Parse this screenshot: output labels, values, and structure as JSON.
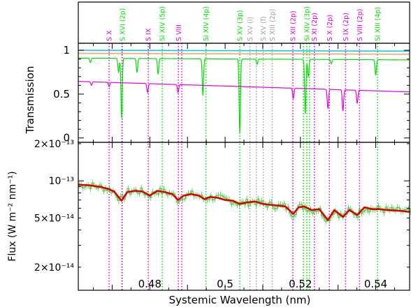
{
  "chart_data": [
    {
      "type": "line",
      "panel": "transmission",
      "ylabel": "Transmission",
      "xlim": [
        0.461,
        0.549
      ],
      "ylim": [
        -0.05,
        1.08
      ],
      "yticks": [
        0,
        0.5,
        1
      ],
      "ytick_labels": [
        "0",
        "0.5",
        "1"
      ],
      "series": [
        {
          "color": "#00c8f0",
          "style": "flat",
          "values": [
            [
              0.461,
              1.0
            ],
            [
              0.549,
              0.99
            ]
          ]
        },
        {
          "color": "#f0a060",
          "style": "flat",
          "values": [
            [
              0.461,
              0.965
            ],
            [
              0.549,
              0.955
            ]
          ]
        },
        {
          "color": "#00e000",
          "style": "absorption",
          "base": [
            [
              0.461,
              0.91
            ],
            [
              0.549,
              0.89
            ]
          ],
          "lines": [
            [
              0.4642,
              0.05
            ],
            [
              0.4717,
              0.16
            ],
            [
              0.4725,
              0.68
            ],
            [
              0.4766,
              0.16
            ],
            [
              0.4822,
              0.18
            ],
            [
              0.4941,
              0.42
            ],
            [
              0.5039,
              0.84
            ],
            [
              0.5085,
              0.06
            ],
            [
              0.5213,
              0.62
            ],
            [
              0.5221,
              0.2
            ],
            [
              0.5282,
              0.05
            ],
            [
              0.54,
              0.18
            ]
          ]
        },
        {
          "color": "#e000e0",
          "style": "absorption",
          "base": [
            [
              0.461,
              0.645
            ],
            [
              0.549,
              0.525
            ]
          ],
          "lines": [
            [
              0.4645,
              0.04
            ],
            [
              0.4692,
              0.05
            ],
            [
              0.4794,
              0.1
            ],
            [
              0.4875,
              0.09
            ],
            [
              0.5181,
              0.12
            ],
            [
              0.5273,
              0.22
            ],
            [
              0.5313,
              0.24
            ],
            [
              0.5351,
              0.15
            ]
          ]
        }
      ]
    },
    {
      "type": "line",
      "panel": "flux",
      "xlabel": "Systemic Wavelength (nm)",
      "ylabel": "Flux (W m⁻² nm⁻¹)",
      "yscale": "log",
      "xlim": [
        0.461,
        0.549
      ],
      "ylim": [
        1.3e-14,
        2.05e-13
      ],
      "xticks": [
        0.48,
        0.5,
        0.52,
        0.54
      ],
      "xtick_labels": [
        "0.48",
        "0.5",
        "0.52",
        "0.54"
      ],
      "yticks": [
        2e-14,
        5e-14,
        1e-13,
        2e-13
      ],
      "ytick_labels": [
        "2×10⁻¹⁴",
        "5×10⁻¹⁴",
        "10⁻¹³",
        "2×10⁻¹³"
      ],
      "series": [
        {
          "color": "#e00000",
          "style": "model",
          "x": [
            0.461,
            0.464,
            0.467,
            0.469,
            0.4705,
            0.4725,
            0.474,
            0.476,
            0.478,
            0.48,
            0.482,
            0.484,
            0.486,
            0.4875,
            0.489,
            0.491,
            0.493,
            0.4945,
            0.496,
            0.498,
            0.5,
            0.502,
            0.5039,
            0.506,
            0.508,
            0.51,
            0.512,
            0.514,
            0.516,
            0.5181,
            0.5195,
            0.521,
            0.523,
            0.525,
            0.5273,
            0.529,
            0.5313,
            0.533,
            0.5351,
            0.537,
            0.539,
            0.541,
            0.543,
            0.545,
            0.547,
            0.549
          ],
          "y": [
            9.3e-14,
            9.2e-14,
            8.9e-14,
            8.6e-14,
            8.2e-14,
            6.9e-14,
            8.1e-14,
            8.3e-14,
            8.2e-14,
            7.6e-14,
            8.3e-14,
            8.1e-14,
            7.8e-14,
            7e-14,
            7.6e-14,
            7.8e-14,
            7.6e-14,
            7.1e-14,
            7.4e-14,
            7.3e-14,
            7e-14,
            6.9e-14,
            6.5e-14,
            6.7e-14,
            6.8e-14,
            6.5e-14,
            6.4e-14,
            6.3e-14,
            6.2e-14,
            5.4e-14,
            6.1e-14,
            6.2e-14,
            5.8e-14,
            5.9e-14,
            4.8e-14,
            5.8e-14,
            5.1e-14,
            5.8e-14,
            5.3e-14,
            6.1e-14,
            5.9e-14,
            5.9e-14,
            5.8e-14,
            5.75e-14,
            5.7e-14,
            5.6e-14
          ]
        },
        {
          "color": "#44cc44",
          "style": "data-steps",
          "note": "noisy binned observed spectrum with error bars around the model"
        }
      ]
    }
  ],
  "line_ids": [
    {
      "label": "S X",
      "wl": 0.4692,
      "color": "#e000e0"
    },
    {
      "label": "S XVI (2p)",
      "wl": 0.4727,
      "color": "#00e000"
    },
    {
      "label": "S IX",
      "wl": 0.4796,
      "color": "#e000e0"
    },
    {
      "label": "Si XIV (5p)",
      "wl": 0.4833,
      "color": "#00e000"
    },
    {
      "label": "S VIII",
      "wl": 0.4876,
      "color": "#e000e0"
    },
    {
      "label": "Si XIV (4p)",
      "wl": 0.4949,
      "color": "#00e000"
    },
    {
      "label": "S XV (3p)",
      "wl": 0.5039,
      "color": "#00e000"
    },
    {
      "label": "S XV (i)",
      "wl": 0.5066,
      "color": "#a0a0a0"
    },
    {
      "label": "S XV (f)",
      "wl": 0.5101,
      "color": "#a0a0a0"
    },
    {
      "label": "S XIII (2p)",
      "wl": 0.5125,
      "color": "#a0a0a0"
    },
    {
      "label": "S XII (2p)",
      "wl": 0.518,
      "color": "#e000e0"
    },
    {
      "label": "Si XIV (3p)",
      "wl": 0.5217,
      "color": "#00e000"
    },
    {
      "label": "S XI (2p)",
      "wl": 0.5237,
      "color": "#e000e0"
    },
    {
      "label": "S X (2p)",
      "wl": 0.5277,
      "color": "#e000e0"
    },
    {
      "label": "S IX (2p)",
      "wl": 0.532,
      "color": "#e000e0"
    },
    {
      "label": "S VIII (2p)",
      "wl": 0.5357,
      "color": "#e000e0"
    },
    {
      "label": "Si XIII (4p)",
      "wl": 0.5405,
      "color": "#00e000"
    }
  ],
  "extra_dotted": [
    {
      "wl": 0.4726,
      "color": "#e000e0"
    },
    {
      "wl": 0.4885,
      "color": "#e000e0"
    },
    {
      "wl": 0.5083,
      "color": "#a0a0a0"
    },
    {
      "wl": 0.5208,
      "color": "#00e000"
    },
    {
      "wl": 0.5224,
      "color": "#00e000"
    }
  ]
}
